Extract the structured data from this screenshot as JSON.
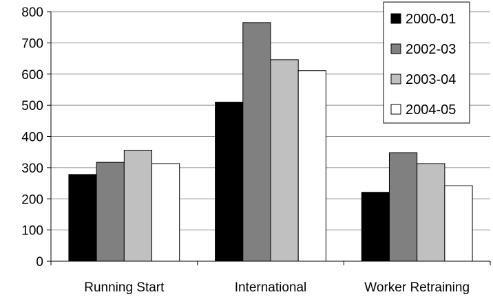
{
  "chart_data": {
    "type": "bar",
    "title": "",
    "xlabel": "",
    "ylabel": "",
    "categories": [
      "Running Start",
      "International",
      "Worker Retraining"
    ],
    "ylim": [
      0,
      800
    ],
    "yticks": [
      0,
      100,
      200,
      300,
      400,
      500,
      600,
      700,
      800
    ],
    "grid": true,
    "legend_position": "top-right",
    "series": [
      {
        "name": "2000-01",
        "color": "#000000",
        "values": [
          278,
          510,
          221
        ]
      },
      {
        "name": "2002-03",
        "color": "#808080",
        "values": [
          317,
          765,
          348
        ]
      },
      {
        "name": "2003-04",
        "color": "#c0c0c0",
        "values": [
          356,
          646,
          313
        ]
      },
      {
        "name": "2004-05",
        "color": "#ffffff",
        "values": [
          313,
          611,
          242
        ]
      }
    ]
  }
}
